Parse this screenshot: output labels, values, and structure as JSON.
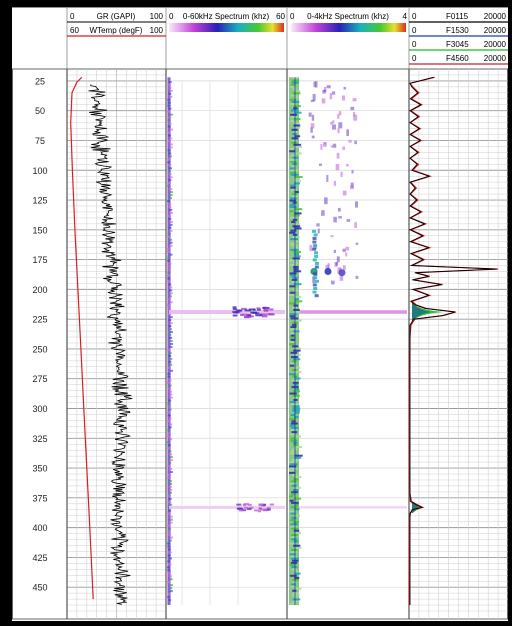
{
  "chart_data": {
    "type": "line",
    "depth_ticks": [
      "25",
      "50",
      "75",
      "100",
      "125",
      "150",
      "175",
      "200",
      "225",
      "250",
      "275",
      "300",
      "325",
      "350",
      "375",
      "400",
      "425",
      "450"
    ],
    "depth_range": [
      15,
      470
    ],
    "tracks": [
      {
        "id": "gamma-temp",
        "curves": [
          {
            "min": "0",
            "label": "GR (GAPI)",
            "max": "100",
            "color": "#000000"
          },
          {
            "min": "60",
            "label": "WTemp (degF)",
            "max": "100",
            "color": "#d42020"
          }
        ]
      },
      {
        "id": "spectrum-60",
        "curves": [
          {
            "min": "0",
            "label": "0-60kHz Spectrum (khz)",
            "max": "60"
          }
        ]
      },
      {
        "id": "spectrum-4",
        "curves": [
          {
            "min": "0",
            "label": "0-4kHz Spectrum (khz)",
            "max": "4"
          }
        ]
      },
      {
        "id": "filters",
        "curves": [
          {
            "min": "0",
            "label": "F0115",
            "max": "20000",
            "color": "#000000"
          },
          {
            "min": "0",
            "label": "F1530",
            "max": "20000",
            "color": "#1a3fb0"
          },
          {
            "min": "0",
            "label": "F3045",
            "max": "20000",
            "color": "#1cb82a"
          },
          {
            "min": "0",
            "label": "F4560",
            "max": "20000",
            "color": "#d42020"
          }
        ]
      }
    ],
    "temperature_curve": {
      "depth": [
        22,
        26,
        35,
        60,
        100,
        150,
        200,
        250,
        300,
        350,
        400,
        460
      ],
      "value": [
        66,
        64,
        62,
        61.5,
        62.2,
        63.2,
        64.4,
        65.6,
        66.8,
        68.0,
        69.2,
        70.6
      ]
    },
    "gr_profile": {
      "depth": [
        30,
        60,
        100,
        150,
        200,
        250,
        300,
        350,
        400,
        460
      ],
      "value": [
        30,
        31,
        37,
        41,
        48,
        52,
        57,
        53,
        50,
        56
      ]
    },
    "filter_curve": {
      "depth": [
        22,
        27,
        30,
        35,
        40,
        45,
        50,
        55,
        60,
        65,
        70,
        75,
        80,
        85,
        90,
        95,
        100,
        105,
        110,
        115,
        120,
        125,
        130,
        135,
        140,
        145,
        150,
        155,
        160,
        165,
        170,
        175,
        180,
        183,
        186,
        189,
        192,
        196,
        200,
        205,
        210,
        213,
        216,
        219,
        222,
        225,
        230,
        240,
        260,
        300,
        340,
        370,
        378,
        381,
        383,
        385,
        388,
        392,
        400,
        430,
        465
      ],
      "value": [
        5200,
        200,
        800,
        2000,
        500,
        2600,
        400,
        2100,
        300,
        2300,
        350,
        2500,
        300,
        2000,
        250,
        1900,
        800,
        4300,
        350,
        1500,
        300,
        1800,
        400,
        2600,
        350,
        3400,
        400,
        3000,
        500,
        4200,
        600,
        3100,
        700,
        18000,
        1400,
        4200,
        900,
        6800,
        1000,
        4200,
        600,
        1500,
        3500,
        9500,
        7000,
        1200,
        400,
        200,
        100,
        80,
        80,
        120,
        500,
        1800,
        2800,
        900,
        300,
        150,
        80,
        60,
        50
      ]
    },
    "filter_peaks": [
      {
        "depth": 219,
        "values": [
          3500,
          4500,
          7000,
          9500
        ]
      },
      {
        "depth": 383,
        "values": [
          1500,
          2000,
          2800,
          2800
        ]
      }
    ]
  }
}
